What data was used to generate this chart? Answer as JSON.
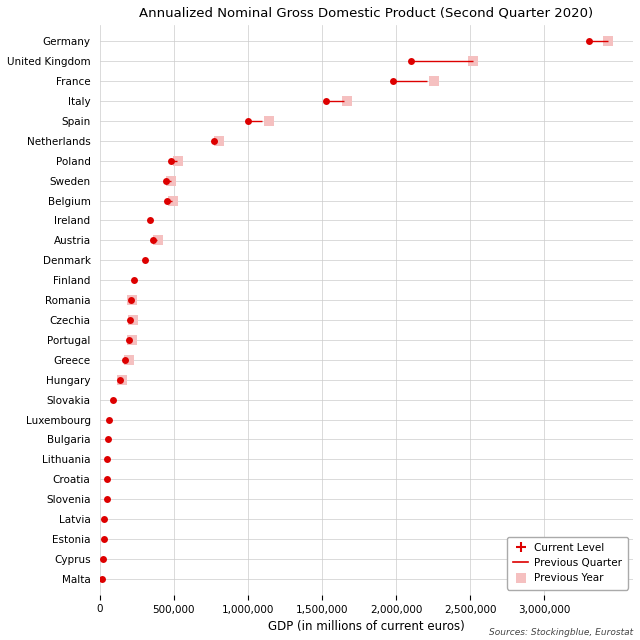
{
  "title": "Annualized Nominal Gross Domestic Product (Second Quarter 2020)",
  "xlabel": "GDP (in millions of current euros)",
  "source": "Sources: Stockingblue, Eurostat",
  "countries": [
    "Germany",
    "United Kingdom",
    "France",
    "Italy",
    "Spain",
    "Netherlands",
    "Poland",
    "Sweden",
    "Belgium",
    "Ireland",
    "Austria",
    "Denmark",
    "Finland",
    "Romania",
    "Czechia",
    "Portugal",
    "Greece",
    "Hungary",
    "Slovakia",
    "Luxembourg",
    "Bulgaria",
    "Lithuania",
    "Croatia",
    "Slovenia",
    "Latvia",
    "Estonia",
    "Cyprus",
    "Malta"
  ],
  "current_level": [
    3300000,
    2100000,
    1980000,
    1530000,
    1000000,
    770000,
    480000,
    450000,
    455000,
    340000,
    360000,
    305000,
    230000,
    210000,
    205000,
    200000,
    170000,
    135000,
    90000,
    65000,
    60000,
    50000,
    52000,
    47000,
    30000,
    27000,
    22000,
    14000
  ],
  "prev_quarter": [
    3430000,
    2520000,
    2210000,
    1650000,
    1095000,
    795000,
    525000,
    480000,
    490000,
    null,
    388000,
    null,
    null,
    null,
    222000,
    null,
    192000,
    null,
    null,
    null,
    null,
    null,
    null,
    null,
    null,
    null,
    null,
    null
  ],
  "prev_year": [
    3430000,
    2520000,
    2260000,
    1670000,
    1140000,
    805000,
    530000,
    483000,
    493000,
    null,
    392000,
    null,
    null,
    218000,
    223000,
    218000,
    197000,
    152000,
    null,
    null,
    null,
    null,
    null,
    null,
    null,
    null,
    null,
    null
  ],
  "current_color": "#dd0000",
  "prev_year_color": "#f5c0c0",
  "line_color": "#dd0000",
  "bg_color": "#ffffff",
  "grid_color": "#cccccc",
  "xlim": [
    0,
    3600000
  ],
  "xticks": [
    0,
    500000,
    1000000,
    1500000,
    2000000,
    2500000,
    3000000
  ],
  "legend_labels": [
    "Current Level",
    "Previous Quarter",
    "Previous Year"
  ],
  "figsize": [
    6.4,
    6.4
  ],
  "dpi": 100
}
